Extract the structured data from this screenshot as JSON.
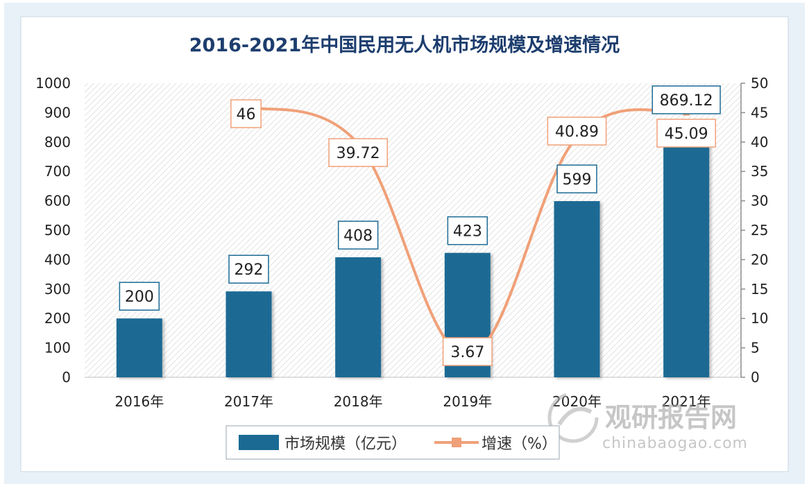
{
  "chart_data": {
    "type": "bar+line",
    "title": "2016-2021年中国民用无人机市场规模及增速情况",
    "categories": [
      "2016年",
      "2017年",
      "2018年",
      "2019年",
      "2020年",
      "2021年"
    ],
    "series": [
      {
        "name": "市场规模（亿元）",
        "type": "bar",
        "axis": "left",
        "color": "#1b6a94",
        "values": [
          200,
          292,
          408,
          423,
          599,
          869.12
        ],
        "labels": [
          "200",
          "292",
          "408",
          "423",
          "599",
          "869.12"
        ]
      },
      {
        "name": "增速（%）",
        "type": "line",
        "axis": "right",
        "color": "#f0a078",
        "values": [
          null,
          46,
          39.72,
          3.67,
          40.89,
          45.09
        ],
        "labels": [
          "",
          "46",
          "39.72",
          "3.67",
          "40.89",
          "45.09"
        ]
      }
    ],
    "y_left": {
      "min": 0,
      "max": 1000,
      "ticks": [
        "0",
        "100",
        "200",
        "300",
        "400",
        "500",
        "600",
        "700",
        "800",
        "900",
        "1000"
      ]
    },
    "y_right": {
      "min": 0,
      "max": 50,
      "ticks": [
        "0",
        "5",
        "10",
        "15",
        "20",
        "25",
        "30",
        "35",
        "40",
        "45",
        "50"
      ]
    },
    "legend_position": "bottom",
    "grid": false
  },
  "watermark": {
    "name": "观研报告网",
    "url": "chinabaogao.com"
  },
  "colors": {
    "title": "#1d3d6e",
    "bar": "#1b6a94",
    "line": "#f0a078",
    "frame": "#c5dbe9"
  }
}
